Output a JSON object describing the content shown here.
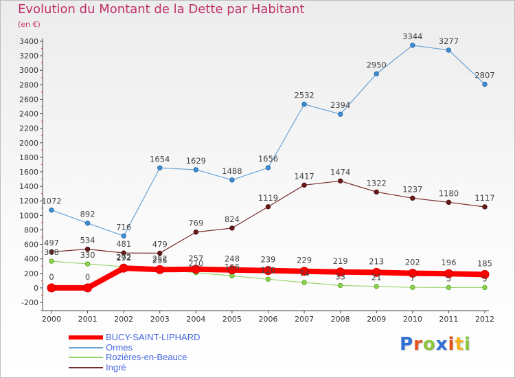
{
  "title": "Evolution du Montant de la Dette par Habitant",
  "subtitle": "(en €)",
  "brand": {
    "text": "Proxiti",
    "colors": [
      "#2f6fd6",
      "#e8501a",
      "#8cc63f",
      "#2f6fd6",
      "#e8501a",
      "#f3b21b",
      "#8cc63f"
    ]
  },
  "chart_data": {
    "type": "line",
    "x": [
      "2000",
      "2001",
      "2002",
      "2003",
      "2004",
      "2005",
      "2006",
      "2007",
      "2008",
      "2009",
      "2010",
      "2011",
      "2012"
    ],
    "ylim": [
      -200,
      3400
    ],
    "yticks": [
      -200,
      0,
      200,
      400,
      600,
      800,
      1000,
      1200,
      1400,
      1600,
      1800,
      2000,
      2200,
      2400,
      2600,
      2800,
      3000,
      3200,
      3400
    ],
    "grid": false,
    "legend_position": "bottom-left",
    "series": [
      {
        "name": "BUCY-SAINT-LIPHARD",
        "color": "#ff0000",
        "values": [
          0,
          0,
          272,
          252,
          257,
          248,
          239,
          229,
          219,
          213,
          202,
          196,
          185
        ],
        "labels": [
          "0",
          "0",
          "272",
          "252",
          "257",
          "248",
          "239",
          "229",
          "219",
          "213",
          "202",
          "196",
          "185"
        ]
      },
      {
        "name": "Ormes",
        "color": "#6aa3d6",
        "values": [
          1072,
          892,
          716,
          1654,
          1629,
          1488,
          1656,
          2532,
          2394,
          2950,
          3344,
          3277,
          2807
        ],
        "labels": [
          "1072",
          "892",
          "716",
          "1654",
          "1629",
          "1488",
          "1656",
          "2532",
          "2394",
          "2950",
          "3344",
          "3277",
          "2807"
        ]
      },
      {
        "name": "Rozières-en-Beauce",
        "color": "#99d46b",
        "values": [
          368,
          330,
          292,
          255,
          210,
          166,
          120,
          74,
          33,
          21,
          7,
          5,
          5
        ],
        "labels": [
          "368",
          "330",
          "292",
          "255",
          "210",
          "166",
          "120",
          "74",
          "33",
          "21",
          "7",
          "5",
          "5"
        ]
      },
      {
        "name": "Ingré",
        "color": "#7a2b2b",
        "values": [
          497,
          534,
          481,
          479,
          769,
          824,
          1119,
          1417,
          1474,
          1322,
          1237,
          1180,
          1117
        ],
        "labels": [
          "497",
          "534",
          "481",
          "479",
          "769",
          "824",
          "1119",
          "1417",
          "1474",
          "1322",
          "1237",
          "1180",
          "1117"
        ]
      }
    ]
  }
}
